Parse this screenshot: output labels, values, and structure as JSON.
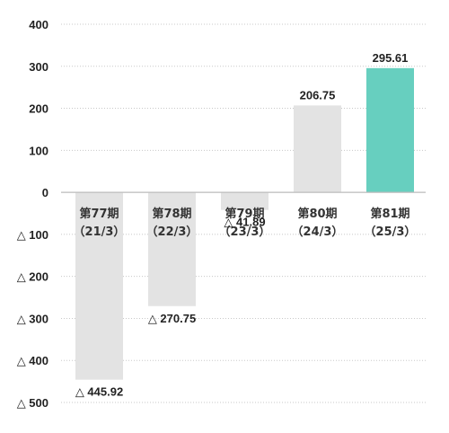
{
  "chart_data": {
    "type": "bar",
    "title": "",
    "xlabel": "",
    "ylabel": "",
    "categories": [
      {
        "line1": "第77期",
        "line2": "（21/3）"
      },
      {
        "line1": "第78期",
        "line2": "（22/3）"
      },
      {
        "line1": "第79期",
        "line2": "（23/3）"
      },
      {
        "line1": "第80期",
        "line2": "（24/3）"
      },
      {
        "line1": "第81期",
        "line2": "（25/3）"
      }
    ],
    "values": [
      -445.92,
      -270.75,
      -41.89,
      206.75,
      295.61
    ],
    "value_labels": [
      "△ 445.92",
      "△ 270.75",
      "△ 41.89",
      "206.75",
      "295.61"
    ],
    "ylim": [
      -500,
      400
    ],
    "yticks": [
      {
        "value": 400,
        "label": "400"
      },
      {
        "value": 300,
        "label": "300"
      },
      {
        "value": 200,
        "label": "200"
      },
      {
        "value": 100,
        "label": "100"
      },
      {
        "value": 0,
        "label": "0"
      },
      {
        "value": -100,
        "label": "△ 100"
      },
      {
        "value": -200,
        "label": "△ 200"
      },
      {
        "value": -300,
        "label": "△ 300"
      },
      {
        "value": -400,
        "label": "△ 400"
      },
      {
        "value": -500,
        "label": "△ 500"
      }
    ],
    "grid": true,
    "colors": {
      "bar_default": "#e3e3e3",
      "bar_highlight": "#67cfbf",
      "grid": "#c8c8c8",
      "axis": "#bbbbbb"
    },
    "highlight_index": 4
  }
}
